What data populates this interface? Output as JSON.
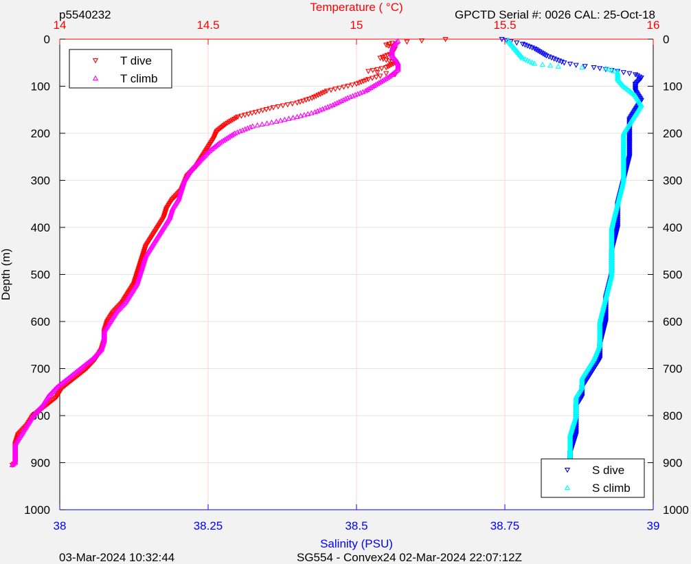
{
  "header": {
    "left_text": "p5540232",
    "right_text": "GPCTD Serial #: 0026 CAL: 25-Oct-18"
  },
  "footer": {
    "left_text": "03-Mar-2024 10:32:44",
    "center_text": "SG554 - Convex24 02-Mar-2024 22:07:12Z"
  },
  "colors": {
    "background": "#f2f2f2",
    "plot_bg": "#ffffff",
    "temperature_axis": "#ff0000",
    "salinity_axis": "#0000ff",
    "t_dive": "#ff0000",
    "t_climb": "#ff00ff",
    "s_dive": "#0000ff",
    "s_climb": "#00ffff"
  },
  "chart_data": {
    "type": "scatter",
    "y_axis": {
      "label": "Depth (m)",
      "range": [
        0,
        1000
      ],
      "reversed": true,
      "ticks": [
        "0",
        "100",
        "200",
        "300",
        "400",
        "500",
        "600",
        "700",
        "800",
        "900",
        "1000"
      ],
      "tick_values": [
        0,
        100,
        200,
        300,
        400,
        500,
        600,
        700,
        800,
        900,
        1000
      ]
    },
    "x_top_axis": {
      "label": "Temperature (   °C)",
      "range": [
        14,
        16
      ],
      "ticks": [
        "14",
        "14.5",
        "15",
        "15.5",
        "16"
      ],
      "tick_values": [
        14,
        14.5,
        15,
        15.5,
        16
      ],
      "grid": true
    },
    "x_bottom_axis": {
      "label": "Salinity (PSU)",
      "range": [
        38,
        39
      ],
      "ticks": [
        "38",
        "38.25",
        "38.5",
        "38.75",
        "39"
      ],
      "tick_values": [
        38,
        38.25,
        38.5,
        38.75,
        39
      ],
      "grid": true
    },
    "legends": [
      {
        "placement": "top-left",
        "entries": [
          "T dive",
          "T climb"
        ]
      },
      {
        "placement": "bottom-right",
        "entries": [
          "S dive",
          "S climb"
        ]
      }
    ],
    "series": [
      {
        "name": "T dive",
        "axis": "temperature",
        "marker": "triangle-down",
        "color": "#ff0000",
        "points": [
          [
            15.3,
            0
          ],
          [
            15.22,
            3
          ],
          [
            15.12,
            8
          ],
          [
            15.1,
            12
          ],
          [
            15.13,
            20
          ],
          [
            15.12,
            30
          ],
          [
            15.08,
            40
          ],
          [
            15.13,
            50
          ],
          [
            15.1,
            60
          ],
          [
            15.04,
            68
          ],
          [
            15.13,
            75
          ],
          [
            15.08,
            78
          ],
          [
            15.04,
            85
          ],
          [
            15.0,
            95
          ],
          [
            14.9,
            110
          ],
          [
            14.85,
            125
          ],
          [
            14.8,
            135
          ],
          [
            14.72,
            145
          ],
          [
            14.66,
            155
          ],
          [
            14.6,
            165
          ],
          [
            14.56,
            180
          ],
          [
            14.53,
            195
          ],
          [
            14.52,
            210
          ],
          [
            14.5,
            230
          ],
          [
            14.48,
            250
          ],
          [
            14.46,
            270
          ],
          [
            14.43,
            290
          ],
          [
            14.41,
            320
          ],
          [
            14.38,
            340
          ],
          [
            14.36,
            360
          ],
          [
            14.35,
            380
          ],
          [
            14.33,
            400
          ],
          [
            14.31,
            420
          ],
          [
            14.29,
            440
          ],
          [
            14.28,
            460
          ],
          [
            14.27,
            480
          ],
          [
            14.26,
            500
          ],
          [
            14.25,
            520
          ],
          [
            14.23,
            540
          ],
          [
            14.21,
            560
          ],
          [
            14.18,
            580
          ],
          [
            14.16,
            600
          ],
          [
            14.15,
            620
          ],
          [
            14.15,
            640
          ],
          [
            14.14,
            660
          ],
          [
            14.12,
            680
          ],
          [
            14.09,
            700
          ],
          [
            14.05,
            720
          ],
          [
            14.01,
            740
          ],
          [
            13.99,
            760
          ],
          [
            13.95,
            780
          ],
          [
            13.91,
            800
          ],
          [
            13.89,
            820
          ],
          [
            13.86,
            840
          ],
          [
            13.85,
            860
          ],
          [
            13.85,
            880
          ],
          [
            13.85,
            900
          ],
          [
            13.84,
            905
          ]
        ]
      },
      {
        "name": "T climb",
        "axis": "temperature",
        "marker": "triangle-up",
        "color": "#ff00ff",
        "points": [
          [
            13.84,
            905
          ],
          [
            13.85,
            900
          ],
          [
            13.85,
            880
          ],
          [
            13.85,
            860
          ],
          [
            13.87,
            840
          ],
          [
            13.89,
            820
          ],
          [
            13.91,
            800
          ],
          [
            13.94,
            780
          ],
          [
            13.96,
            760
          ],
          [
            13.99,
            740
          ],
          [
            14.03,
            720
          ],
          [
            14.07,
            700
          ],
          [
            14.11,
            680
          ],
          [
            14.14,
            660
          ],
          [
            14.15,
            640
          ],
          [
            14.15,
            620
          ],
          [
            14.17,
            600
          ],
          [
            14.19,
            580
          ],
          [
            14.22,
            560
          ],
          [
            14.24,
            540
          ],
          [
            14.26,
            520
          ],
          [
            14.27,
            500
          ],
          [
            14.28,
            480
          ],
          [
            14.29,
            460
          ],
          [
            14.31,
            440
          ],
          [
            14.33,
            420
          ],
          [
            14.35,
            400
          ],
          [
            14.37,
            380
          ],
          [
            14.38,
            360
          ],
          [
            14.4,
            340
          ],
          [
            14.41,
            320
          ],
          [
            14.42,
            300
          ],
          [
            14.44,
            280
          ],
          [
            14.47,
            260
          ],
          [
            14.5,
            240
          ],
          [
            14.54,
            220
          ],
          [
            14.59,
            200
          ],
          [
            14.65,
            185
          ],
          [
            14.73,
            175
          ],
          [
            14.8,
            165
          ],
          [
            14.86,
            155
          ],
          [
            14.92,
            140
          ],
          [
            14.97,
            125
          ],
          [
            15.03,
            110
          ],
          [
            15.07,
            95
          ],
          [
            15.11,
            80
          ],
          [
            15.14,
            65
          ],
          [
            15.14,
            50
          ],
          [
            15.12,
            35
          ],
          [
            15.12,
            20
          ],
          [
            15.13,
            10
          ],
          [
            15.14,
            4
          ]
        ]
      },
      {
        "name": "S dive",
        "axis": "salinity",
        "marker": "triangle-down",
        "color": "#0000ff",
        "points": [
          [
            38.745,
            0
          ],
          [
            38.76,
            5
          ],
          [
            38.78,
            10
          ],
          [
            38.8,
            20
          ],
          [
            38.82,
            35
          ],
          [
            38.85,
            50
          ],
          [
            38.87,
            55
          ],
          [
            38.9,
            60
          ],
          [
            38.94,
            68
          ],
          [
            38.97,
            75
          ],
          [
            38.98,
            82
          ],
          [
            38.97,
            95
          ],
          [
            38.97,
            110
          ],
          [
            38.98,
            130
          ],
          [
            38.97,
            150
          ],
          [
            38.96,
            170
          ],
          [
            38.96,
            200
          ],
          [
            38.96,
            250
          ],
          [
            38.95,
            300
          ],
          [
            38.94,
            350
          ],
          [
            38.94,
            400
          ],
          [
            38.93,
            450
          ],
          [
            38.93,
            500
          ],
          [
            38.92,
            550
          ],
          [
            38.92,
            600
          ],
          [
            38.91,
            650
          ],
          [
            38.91,
            680
          ],
          [
            38.9,
            700
          ],
          [
            38.89,
            720
          ],
          [
            38.88,
            740
          ],
          [
            38.88,
            760
          ],
          [
            38.87,
            780
          ],
          [
            38.87,
            800
          ],
          [
            38.87,
            840
          ],
          [
            38.86,
            880
          ],
          [
            38.86,
            905
          ]
        ]
      },
      {
        "name": "S climb",
        "axis": "salinity",
        "marker": "triangle-up",
        "color": "#00ffff",
        "points": [
          [
            38.86,
            905
          ],
          [
            38.86,
            880
          ],
          [
            38.86,
            840
          ],
          [
            38.87,
            800
          ],
          [
            38.87,
            780
          ],
          [
            38.87,
            760
          ],
          [
            38.88,
            740
          ],
          [
            38.88,
            720
          ],
          [
            38.89,
            700
          ],
          [
            38.9,
            680
          ],
          [
            38.91,
            650
          ],
          [
            38.91,
            600
          ],
          [
            38.92,
            550
          ],
          [
            38.93,
            500
          ],
          [
            38.93,
            450
          ],
          [
            38.93,
            400
          ],
          [
            38.94,
            350
          ],
          [
            38.95,
            300
          ],
          [
            38.95,
            250
          ],
          [
            38.95,
            200
          ],
          [
            38.96,
            180
          ],
          [
            38.97,
            160
          ],
          [
            38.98,
            140
          ],
          [
            38.97,
            120
          ],
          [
            38.95,
            100
          ],
          [
            38.94,
            85
          ],
          [
            38.94,
            70
          ],
          [
            38.92,
            62
          ],
          [
            38.88,
            60
          ],
          [
            38.84,
            58
          ],
          [
            38.8,
            52
          ],
          [
            38.78,
            40
          ],
          [
            38.77,
            25
          ],
          [
            38.76,
            10
          ],
          [
            38.755,
            3
          ]
        ]
      }
    ]
  }
}
